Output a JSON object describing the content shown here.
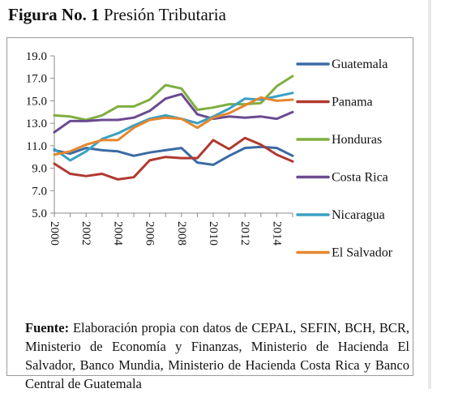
{
  "figure": {
    "title_prefix": "Figura No. 1",
    "title_text": "Presión Tributaria"
  },
  "note": {
    "label": "Fuente:",
    "text": "Elaboración propia con datos de CEPAL, SEFIN, BCH, BCR, Ministerio de Economía y Finanzas, Ministerio de Hacienda El Salvador, Banco Mundia, Ministerio de Hacienda Costa Rica y Banco Central de Guatemala"
  },
  "chart_data": {
    "type": "line",
    "title": "",
    "xlabel": "",
    "ylabel": "",
    "x": [
      2000,
      2001,
      2002,
      2003,
      2004,
      2005,
      2006,
      2007,
      2008,
      2009,
      2010,
      2011,
      2012,
      2013,
      2014,
      2015
    ],
    "x_tick_labels": [
      "2000",
      "2002",
      "2004",
      "2006",
      "2008",
      "2010",
      "2012",
      "2014"
    ],
    "y_tick_labels": [
      "5.0",
      "7.0",
      "9.0",
      "11.0",
      "13.0",
      "15.0",
      "17.0",
      "19.0"
    ],
    "ylim": [
      5.0,
      19.0
    ],
    "grid": false,
    "legend_position": "right",
    "series": [
      {
        "name": "Guatemala",
        "color": "#3a6aa5",
        "values": [
          10.6,
          10.3,
          10.8,
          10.6,
          10.5,
          10.1,
          10.4,
          10.6,
          10.8,
          9.5,
          9.3,
          10.1,
          10.8,
          10.9,
          10.8,
          10.1
        ]
      },
      {
        "name": "Panama",
        "color": "#b0392f",
        "values": [
          9.4,
          8.5,
          8.3,
          8.5,
          8.0,
          8.2,
          9.7,
          10.0,
          9.9,
          9.9,
          11.5,
          10.7,
          11.7,
          11.1,
          10.2,
          9.6
        ]
      },
      {
        "name": "Honduras",
        "color": "#7fae40",
        "values": [
          13.7,
          13.6,
          13.3,
          13.7,
          14.5,
          14.5,
          15.1,
          16.4,
          16.1,
          14.2,
          14.4,
          14.7,
          14.7,
          14.8,
          16.3,
          17.2
        ]
      },
      {
        "name": "Costa Rica",
        "color": "#6a4a90",
        "values": [
          12.2,
          13.2,
          13.2,
          13.3,
          13.3,
          13.5,
          14.1,
          15.2,
          15.6,
          13.8,
          13.4,
          13.6,
          13.5,
          13.6,
          13.4,
          14.0
        ]
      },
      {
        "name": "Nicaragua",
        "color": "#3aa0c4",
        "values": [
          10.7,
          9.7,
          10.5,
          11.6,
          12.1,
          12.8,
          13.4,
          13.7,
          13.4,
          13.0,
          13.6,
          14.3,
          15.2,
          15.1,
          15.4,
          15.7
        ]
      },
      {
        "name": "El Salvador",
        "color": "#e5872f",
        "values": [
          10.2,
          10.5,
          11.1,
          11.5,
          11.5,
          12.6,
          13.3,
          13.5,
          13.4,
          12.6,
          13.5,
          13.9,
          14.6,
          15.3,
          15.0,
          15.1
        ]
      }
    ]
  }
}
